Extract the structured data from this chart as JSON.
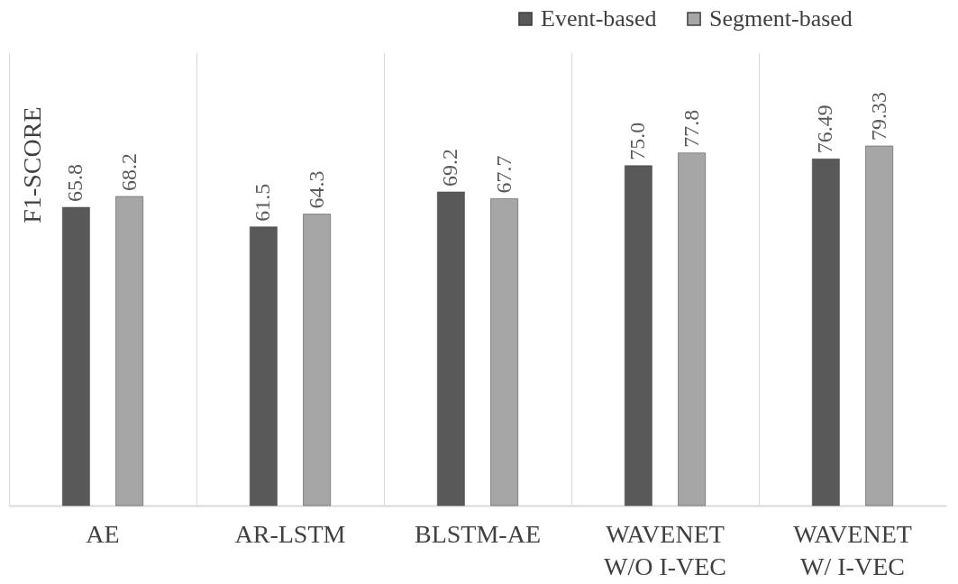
{
  "chart_data": {
    "type": "bar",
    "ylabel": "F1-SCORE",
    "categories": [
      "AE",
      "AR-LSTM",
      "BLSTM-AE",
      "WAVENET W/O I-VEC",
      "WAVENET W/ I-VEC"
    ],
    "series": [
      {
        "name": "Event-based",
        "color": "#595959",
        "values": [
          65.8,
          61.5,
          69.2,
          75.0,
          76.49
        ],
        "value_labels": [
          "65.8",
          "61.5",
          "69.2",
          "75.0",
          "76.49"
        ]
      },
      {
        "name": "Segment-based",
        "color": "#a6a6a6",
        "values": [
          68.2,
          64.3,
          67.7,
          77.8,
          79.33
        ],
        "value_labels": [
          "68.2",
          "64.3",
          "67.7",
          "77.8",
          "79.33"
        ]
      }
    ],
    "ylim": [
      0,
      100
    ],
    "grid": "x",
    "legend": "top right",
    "tick_labels": "x"
  }
}
